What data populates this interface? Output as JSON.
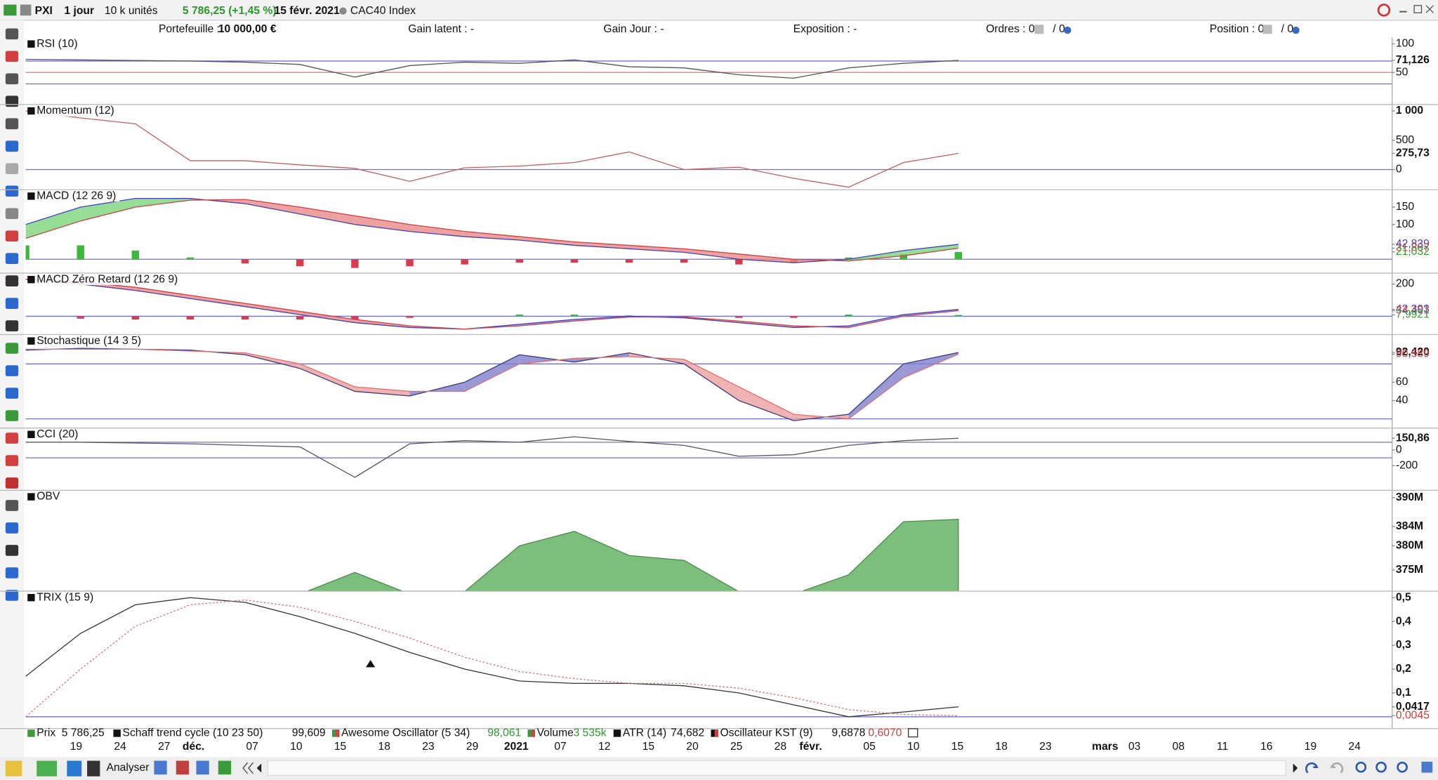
{
  "toolbar": {
    "symbol": "PXI",
    "period": "1 jour",
    "units": "10 k unités",
    "quote": "5 786,25 (+1,45 %)",
    "date": "15 févr. 2021",
    "name": "CAC40 Index"
  },
  "portfolio_bar": {
    "portfolio_label": "Portefeuille :",
    "portfolio_value": "10 000,00 €",
    "gain_latent": "Gain latent : -",
    "gain_day": "Gain Jour : -",
    "exposure": "Exposition : -",
    "orders": "Ordres : 0",
    "orders_total": "/ 0",
    "position": "Position : 0",
    "position_total": "/ 0"
  },
  "chart_data": [
    {
      "type": "line",
      "title": "RSI (10)",
      "ylim": [
        -6,
        111
      ],
      "yticks": [
        100,
        50,
        {
          "value": 71.126,
          "label": "71,126"
        }
      ],
      "levels": [
        70,
        50,
        30
      ],
      "level_colors": [
        "#7070d0",
        "#e08080",
        "#7070d0"
      ],
      "series": [
        {
          "color": "#555555",
          "values": [
            73,
            72,
            71,
            70,
            68,
            64,
            42,
            62,
            68,
            66,
            72,
            60,
            58,
            46,
            40,
            58,
            66,
            71.126
          ]
        }
      ]
    },
    {
      "type": "line",
      "title": "Momentum (12)",
      "ylim": [
        -344,
        1109
      ],
      "yticks": [
        {
          "value": 1000,
          "label": "1 000"
        },
        500,
        0,
        {
          "value": 275.73,
          "label": "275,73"
        }
      ],
      "levels": [
        0
      ],
      "level_colors": [
        "#7070d0"
      ],
      "series": [
        {
          "color": "#c06060",
          "values": [
            1000,
            880,
            780,
            150,
            150,
            80,
            20,
            -200,
            30,
            60,
            120,
            300,
            0,
            40,
            -150,
            -300,
            120,
            275.73
          ]
        }
      ]
    },
    {
      "type": "macd",
      "title": "MACD (12 26 9)",
      "ylim": [
        -40,
        200
      ],
      "yticks": [
        150,
        100,
        {
          "value": 42.839,
          "label": "42,839",
          "color": "#4040c0"
        },
        {
          "value": 31.807,
          "label": "31,807",
          "color": "#d04040"
        },
        {
          "value": 21.032,
          "label": "21,032",
          "color": "#30a030"
        }
      ],
      "levels": [
        0
      ],
      "level_colors": [
        "#7070d0"
      ],
      "series": [
        {
          "color": "#4040c0",
          "values": [
            100,
            150,
            175,
            175,
            160,
            130,
            100,
            80,
            65,
            55,
            40,
            30,
            20,
            0,
            -10,
            0,
            25,
            42.839
          ]
        },
        {
          "color": "#d04040",
          "values": [
            60,
            110,
            150,
            170,
            172,
            150,
            125,
            100,
            80,
            65,
            50,
            40,
            30,
            15,
            0,
            -5,
            10,
            31.807
          ]
        }
      ],
      "fill_colors": [
        "#7cd67c",
        "#e88a8a"
      ],
      "histogram": {
        "colors": [
          "#3cb83c",
          "#d83c4c"
        ],
        "values": [
          40,
          40,
          25,
          5,
          -12,
          -20,
          -25,
          -20,
          -15,
          -10,
          -10,
          -10,
          -10,
          -15,
          -10,
          5,
          15,
          21.032
        ]
      }
    },
    {
      "type": "macd",
      "title": "MACD Zéro Retard (12 26 9)",
      "ylim": [
        -114,
        268
      ],
      "yticks": [
        200,
        {
          "value": 42.393,
          "label": "42,393",
          "color": "#4040c0"
        },
        {
          "value": 34.401,
          "label": "34,401",
          "color": "#d04040"
        },
        {
          "value": 7.9921,
          "label": "7,9921",
          "color": "#30a030"
        }
      ],
      "levels": [
        0
      ],
      "level_colors": [
        "#7070d0"
      ],
      "series": [
        {
          "color": "#4040c0",
          "values": [
            230,
            200,
            160,
            110,
            60,
            10,
            -40,
            -70,
            -80,
            -50,
            -20,
            0,
            -10,
            -40,
            -70,
            -60,
            10,
            42.393
          ]
        },
        {
          "color": "#d04040",
          "values": [
            230,
            215,
            180,
            130,
            80,
            30,
            -20,
            -60,
            -80,
            -60,
            -30,
            -5,
            -5,
            -30,
            -60,
            -70,
            0,
            34.401
          ]
        }
      ],
      "fill_colors": [
        "#9090e0",
        "#e88a8a"
      ],
      "histogram": {
        "colors": [
          "#3cb83c",
          "#d83c4c"
        ],
        "values": [
          0,
          -15,
          -20,
          -20,
          -20,
          -20,
          -20,
          -10,
          0,
          10,
          10,
          5,
          -5,
          -10,
          -10,
          10,
          10,
          7.9921
        ]
      }
    },
    {
      "type": "macd",
      "title": "Stochastique (14 3 5)",
      "ylim": [
        10,
        112
      ],
      "yticks": [
        {
          "value": 92.42,
          "label": "92,420"
        },
        {
          "value": 90.589,
          "label": "90,589",
          "color": "#d04040"
        },
        60,
        40
      ],
      "levels": [
        80,
        20
      ],
      "level_colors": [
        "#7070d0",
        "#7070d0"
      ],
      "series": [
        {
          "color": "#3a3a80",
          "values": [
            95,
            97,
            96,
            95,
            90,
            75,
            50,
            45,
            60,
            90,
            82,
            92,
            80,
            40,
            18,
            25,
            80,
            92.42
          ]
        },
        {
          "color": "#e07070",
          "values": [
            96,
            96,
            96,
            94,
            92,
            80,
            55,
            50,
            50,
            80,
            86,
            88,
            85,
            55,
            25,
            20,
            65,
            90.589
          ]
        }
      ],
      "fill_colors": [
        "#8080cc",
        "#eba0a0"
      ]
    },
    {
      "type": "line",
      "title": "CCI (20)",
      "ylim": [
        -517,
        282
      ],
      "yticks": [
        {
          "value": 150.86,
          "label": "150,86"
        },
        0,
        -200
      ],
      "levels": [
        100,
        -100
      ],
      "level_colors": [
        "#7070d0",
        "#7070d0"
      ],
      "series": [
        {
          "color": "#555555",
          "values": [
            100,
            100,
            90,
            80,
            60,
            40,
            -350,
            80,
            120,
            100,
            170,
            110,
            60,
            -80,
            -60,
            60,
            120,
            150.86
          ]
        }
      ]
    },
    {
      "type": "area",
      "title": "OBV",
      "ylim": [
        370600000,
        391500000
      ],
      "yticks": [
        {
          "value": 390000000,
          "label": "390M"
        },
        {
          "value": 384000000,
          "label": "384M"
        },
        {
          "value": 380000000,
          "label": "380M"
        },
        {
          "value": 375000000,
          "label": "375M"
        }
      ],
      "series": [
        {
          "color": "#7cbf7c",
          "values": [
            370000000,
            370000000,
            370000000,
            370000000,
            370000000,
            370000000,
            374500000,
            370000000,
            370500000,
            380000000,
            383000000,
            378000000,
            377000000,
            370500000,
            370000000,
            374000000,
            385000000,
            385500000
          ]
        }
      ]
    },
    {
      "type": "line",
      "title": "TRIX (15 9)",
      "ylim": [
        -0.05,
        0.527
      ],
      "yticks": [
        {
          "value": 0.5,
          "label": "0,5"
        },
        {
          "value": 0.4,
          "label": "0,4"
        },
        {
          "value": 0.3,
          "label": "0,3"
        },
        {
          "value": 0.2,
          "label": "0,2"
        },
        {
          "value": 0.1,
          "label": "0,1"
        },
        {
          "value": 0.0417,
          "label": "0,0417"
        },
        {
          "value": 0.0045,
          "label": "0,0045",
          "color": "#d04040"
        }
      ],
      "levels": [
        0
      ],
      "level_colors": [
        "#7070d0"
      ],
      "series": [
        {
          "color": "#333333",
          "values": [
            0.17,
            0.35,
            0.47,
            0.5,
            0.48,
            0.42,
            0.35,
            0.27,
            0.2,
            0.15,
            0.14,
            0.14,
            0.13,
            0.1,
            0.05,
            0,
            0.02,
            0.0417
          ]
        },
        {
          "color": "#e07070",
          "dotted": true,
          "values": [
            0,
            0.2,
            0.38,
            0.47,
            0.49,
            0.46,
            0.4,
            0.33,
            0.25,
            0.19,
            0.16,
            0.14,
            0.14,
            0.12,
            0.08,
            0.03,
            0.01,
            0.0045
          ]
        }
      ]
    }
  ],
  "x_axis_labels": [
    "19",
    "24",
    "27",
    "déc.",
    "07",
    "10",
    "15",
    "18",
    "23",
    "29",
    "2021",
    "07",
    "12",
    "15",
    "20",
    "25",
    "28",
    "févr.",
    "05",
    "10",
    "15",
    "18",
    "23",
    "mars",
    "03",
    "08",
    "11",
    "16",
    "19",
    "24"
  ],
  "legend_bar": [
    {
      "name": "Prix",
      "value": "5 786,25"
    },
    {
      "name": "Schaff trend cycle (10 23 50)",
      "value": "99,609"
    },
    {
      "name": "Awesome Oscillator (5 34)",
      "value": "98,061"
    },
    {
      "name": "Volume",
      "value": "3 535k"
    },
    {
      "name": "ATR (14)",
      "value": "74,682"
    },
    {
      "name": "Oscillateur KST (9)",
      "value": "9,6878",
      "value2": "0,6070"
    }
  ],
  "bottom_toolbar": {
    "analyze": "Analyser"
  }
}
